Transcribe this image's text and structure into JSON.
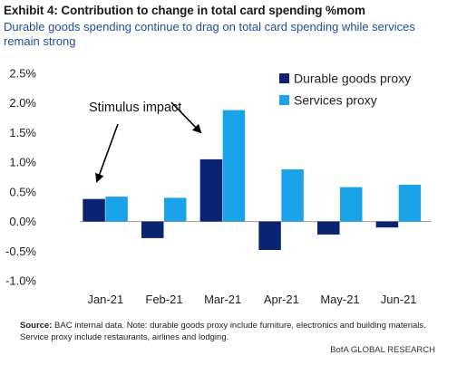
{
  "header": {
    "title": "Exhibit 4: Contribution to change in total card spending %mom",
    "subtitle": "Durable goods spending continue to drag on total card spending while services remain strong"
  },
  "chart_data": {
    "type": "bar",
    "categories": [
      "Jan-21",
      "Feb-21",
      "Mar-21",
      "Apr-21",
      "May-21",
      "Jun-21"
    ],
    "series": [
      {
        "name": "Durable goods proxy",
        "color": "#0a2472",
        "values": [
          0.38,
          -0.28,
          1.05,
          -0.48,
          -0.22,
          -0.1
        ]
      },
      {
        "name": "Services proxy",
        "color": "#1aa3e8",
        "values": [
          0.42,
          0.4,
          1.88,
          0.88,
          0.58,
          0.62
        ]
      }
    ],
    "ylim": [
      -1.0,
      2.5
    ],
    "yticks": [
      2.5,
      2.0,
      1.5,
      1.0,
      0.5,
      0.0,
      -0.5,
      -1.0
    ],
    "ytick_labels": [
      "2.5%",
      "2.0%",
      "1.5%",
      "1.0%",
      "0.5%",
      "0.0%",
      "-0.5%",
      "-1.0%"
    ],
    "legend_position": "top-right",
    "grid": false,
    "annotation": {
      "text": "Stimulus impact",
      "targets": [
        "Jan-21",
        "Mar-21"
      ]
    }
  },
  "footer": {
    "source_label": "Source:",
    "source_text": "BAC internal data. Note: durable goods proxy include furniture, electronics and building materials. Service proxy include restaurants, airlines and lodging.",
    "brand": "BofA GLOBAL RESEARCH"
  }
}
